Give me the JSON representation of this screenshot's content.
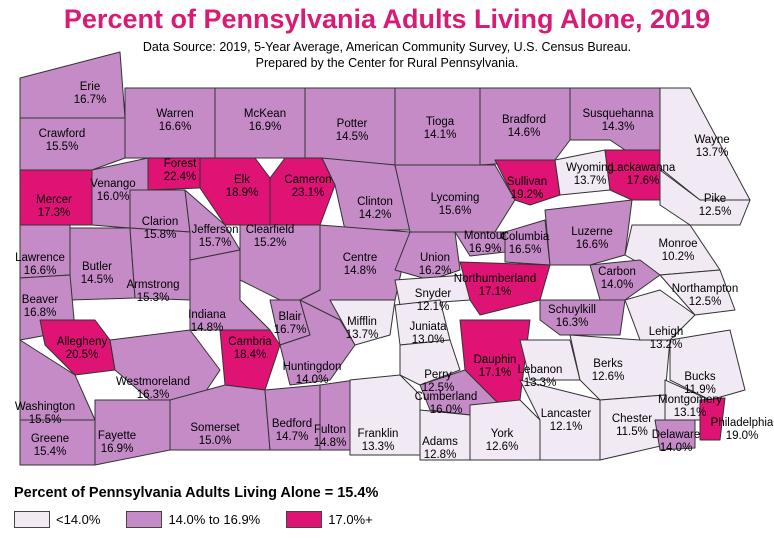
{
  "title": "Percent of Pennsylvania Adults Living Alone, 2019",
  "source_line1": "Data Source: 2019, 5-Year Average, American Community Survey, U.S. Census Bureau.",
  "source_line2": "Prepared by the Center for Rural Pennsylvania.",
  "state_average": "Percent of Pennsylvania Adults Living Alone = 15.4%",
  "colors": {
    "low": "#f1e9f4",
    "mid": "#c48bc7",
    "high": "#df1374",
    "border": "#333333",
    "title": "#d81b74"
  },
  "legend": [
    {
      "label": "<14.0%",
      "class": "low"
    },
    {
      "label": "14.0% to 16.9%",
      "class": "mid"
    },
    {
      "label": "17.0%+",
      "class": "high"
    }
  ],
  "counties": [
    {
      "name": "Erie",
      "value": "16.7%",
      "class": "mid"
    },
    {
      "name": "Crawford",
      "value": "15.5%",
      "class": "mid"
    },
    {
      "name": "Warren",
      "value": "16.6%",
      "class": "mid"
    },
    {
      "name": "McKean",
      "value": "16.9%",
      "class": "mid"
    },
    {
      "name": "Potter",
      "value": "14.5%",
      "class": "mid"
    },
    {
      "name": "Tioga",
      "value": "14.1%",
      "class": "mid"
    },
    {
      "name": "Bradford",
      "value": "14.6%",
      "class": "mid"
    },
    {
      "name": "Susquehanna",
      "value": "14.3%",
      "class": "mid"
    },
    {
      "name": "Wayne",
      "value": "13.7%",
      "class": "low"
    },
    {
      "name": "Mercer",
      "value": "17.3%",
      "class": "high"
    },
    {
      "name": "Venango",
      "value": "16.0%",
      "class": "mid"
    },
    {
      "name": "Forest",
      "value": "22.4%",
      "class": "high"
    },
    {
      "name": "Elk",
      "value": "18.9%",
      "class": "high"
    },
    {
      "name": "Cameron",
      "value": "23.1%",
      "class": "high"
    },
    {
      "name": "Clinton",
      "value": "14.2%",
      "class": "mid"
    },
    {
      "name": "Lycoming",
      "value": "15.6%",
      "class": "mid"
    },
    {
      "name": "Sullivan",
      "value": "19.2%",
      "class": "high"
    },
    {
      "name": "Wyoming",
      "value": "13.7%",
      "class": "low"
    },
    {
      "name": "Lackawanna",
      "value": "17.6%",
      "class": "high"
    },
    {
      "name": "Pike",
      "value": "12.5%",
      "class": "low"
    },
    {
      "name": "Lawrence",
      "value": "16.6%",
      "class": "mid"
    },
    {
      "name": "Butler",
      "value": "14.5%",
      "class": "mid"
    },
    {
      "name": "Clarion",
      "value": "15.8%",
      "class": "mid"
    },
    {
      "name": "Jefferson",
      "value": "15.7%",
      "class": "mid"
    },
    {
      "name": "Clearfield",
      "value": "15.2%",
      "class": "mid"
    },
    {
      "name": "Centre",
      "value": "14.8%",
      "class": "mid"
    },
    {
      "name": "Union",
      "value": "16.2%",
      "class": "mid"
    },
    {
      "name": "Montour",
      "value": "16.9%",
      "class": "mid"
    },
    {
      "name": "Columbia",
      "value": "16.5%",
      "class": "mid"
    },
    {
      "name": "Luzerne",
      "value": "16.6%",
      "class": "mid"
    },
    {
      "name": "Monroe",
      "value": "10.2%",
      "class": "low"
    },
    {
      "name": "Beaver",
      "value": "16.8%",
      "class": "mid"
    },
    {
      "name": "Armstrong",
      "value": "15.3%",
      "class": "mid"
    },
    {
      "name": "Indiana",
      "value": "14.8%",
      "class": "mid"
    },
    {
      "name": "Snyder",
      "value": "12.1%",
      "class": "low"
    },
    {
      "name": "Northumberland",
      "value": "17.1%",
      "class": "high"
    },
    {
      "name": "Carbon",
      "value": "14.0%",
      "class": "mid"
    },
    {
      "name": "Northampton",
      "value": "12.5%",
      "class": "low"
    },
    {
      "name": "Allegheny",
      "value": "20.5%",
      "class": "high"
    },
    {
      "name": "Cambria",
      "value": "18.4%",
      "class": "high"
    },
    {
      "name": "Blair",
      "value": "16.7%",
      "class": "mid"
    },
    {
      "name": "Mifflin",
      "value": "13.7%",
      "class": "low"
    },
    {
      "name": "Juniata",
      "value": "13.0%",
      "class": "low"
    },
    {
      "name": "Schuylkill",
      "value": "16.3%",
      "class": "mid"
    },
    {
      "name": "Lehigh",
      "value": "13.2%",
      "class": "low"
    },
    {
      "name": "Westmoreland",
      "value": "16.3%",
      "class": "mid"
    },
    {
      "name": "Huntingdon",
      "value": "14.0%",
      "class": "mid"
    },
    {
      "name": "Perry",
      "value": "12.5%",
      "class": "low"
    },
    {
      "name": "Dauphin",
      "value": "17.1%",
      "class": "high"
    },
    {
      "name": "Lebanon",
      "value": "13.3%",
      "class": "low"
    },
    {
      "name": "Berks",
      "value": "12.6%",
      "class": "low"
    },
    {
      "name": "Bucks",
      "value": "11.9%",
      "class": "low"
    },
    {
      "name": "Washington",
      "value": "15.5%",
      "class": "mid"
    },
    {
      "name": "Somerset",
      "value": "15.0%",
      "class": "mid"
    },
    {
      "name": "Bedford",
      "value": "14.7%",
      "class": "mid"
    },
    {
      "name": "Fulton",
      "value": "14.8%",
      "class": "mid"
    },
    {
      "name": "Franklin",
      "value": "13.3%",
      "class": "low"
    },
    {
      "name": "Cumberland",
      "value": "16.0%",
      "class": "mid"
    },
    {
      "name": "Adams",
      "value": "12.8%",
      "class": "low"
    },
    {
      "name": "York",
      "value": "12.6%",
      "class": "low"
    },
    {
      "name": "Lancaster",
      "value": "12.1%",
      "class": "low"
    },
    {
      "name": "Chester",
      "value": "11.5%",
      "class": "low"
    },
    {
      "name": "Montgomery",
      "value": "13.1%",
      "class": "low"
    },
    {
      "name": "Delaware",
      "value": "14.0%",
      "class": "mid"
    },
    {
      "name": "Philadelphia",
      "value": "19.0%",
      "class": "high"
    },
    {
      "name": "Greene",
      "value": "15.4%",
      "class": "mid"
    },
    {
      "name": "Fayette",
      "value": "16.9%",
      "class": "mid"
    }
  ]
}
